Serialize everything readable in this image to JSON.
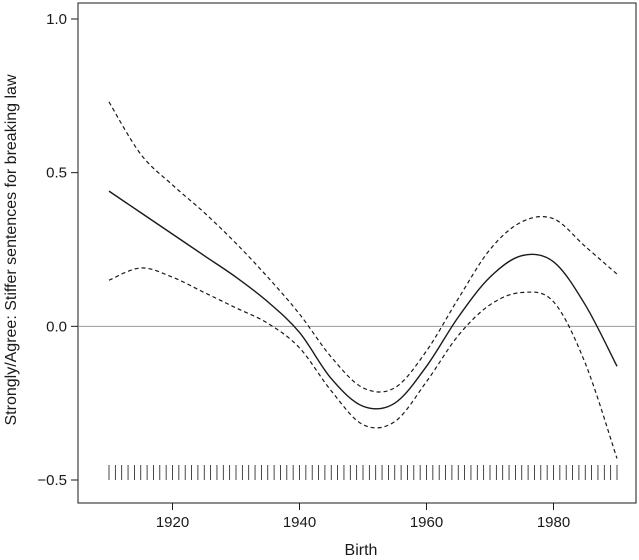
{
  "chart_data": {
    "type": "line",
    "title": "",
    "xlabel": "Birth",
    "ylabel": "Strongly/Agree: Stiffer sentences for breaking law",
    "xlim": [
      1910,
      1990
    ],
    "ylim": [
      -0.5,
      1.0
    ],
    "x_ticks": [
      1920,
      1940,
      1960,
      1980
    ],
    "x_tick_labels": [
      "1920",
      "1940",
      "1960",
      "1980"
    ],
    "y_ticks": [
      1.0,
      0.5,
      0.0,
      -0.5
    ],
    "y_tick_labels": [
      "1.0",
      "0.5",
      "0.0",
      "−0.5"
    ],
    "reference_line_y": 0.0,
    "rug": {
      "start": 1910,
      "end": 1990,
      "step": 1,
      "y": -0.5
    },
    "series": [
      {
        "style": "solid",
        "x": [
          1910,
          1915,
          1920,
          1925,
          1930,
          1935,
          1940,
          1945,
          1950,
          1955,
          1960,
          1965,
          1970,
          1975,
          1980,
          1985,
          1990
        ],
        "y": [
          0.44,
          0.37,
          0.3,
          0.23,
          0.16,
          0.08,
          -0.02,
          -0.17,
          -0.26,
          -0.25,
          -0.13,
          0.03,
          0.16,
          0.23,
          0.21,
          0.07,
          -0.13
        ]
      },
      {
        "style": "dashed",
        "x": [
          1910,
          1915,
          1920,
          1925,
          1930,
          1935,
          1940,
          1945,
          1950,
          1955,
          1960,
          1965,
          1970,
          1975,
          1980,
          1985,
          1990
        ],
        "y": [
          0.73,
          0.56,
          0.46,
          0.37,
          0.27,
          0.16,
          0.04,
          -0.1,
          -0.2,
          -0.2,
          -0.08,
          0.09,
          0.25,
          0.34,
          0.35,
          0.26,
          0.17
        ]
      },
      {
        "style": "dashed",
        "x": [
          1910,
          1915,
          1920,
          1925,
          1930,
          1935,
          1940,
          1945,
          1950,
          1955,
          1960,
          1965,
          1970,
          1975,
          1980,
          1985,
          1990
        ],
        "y": [
          0.15,
          0.19,
          0.16,
          0.11,
          0.06,
          0.01,
          -0.07,
          -0.21,
          -0.32,
          -0.31,
          -0.18,
          -0.03,
          0.07,
          0.11,
          0.08,
          -0.12,
          -0.43
        ]
      }
    ]
  }
}
